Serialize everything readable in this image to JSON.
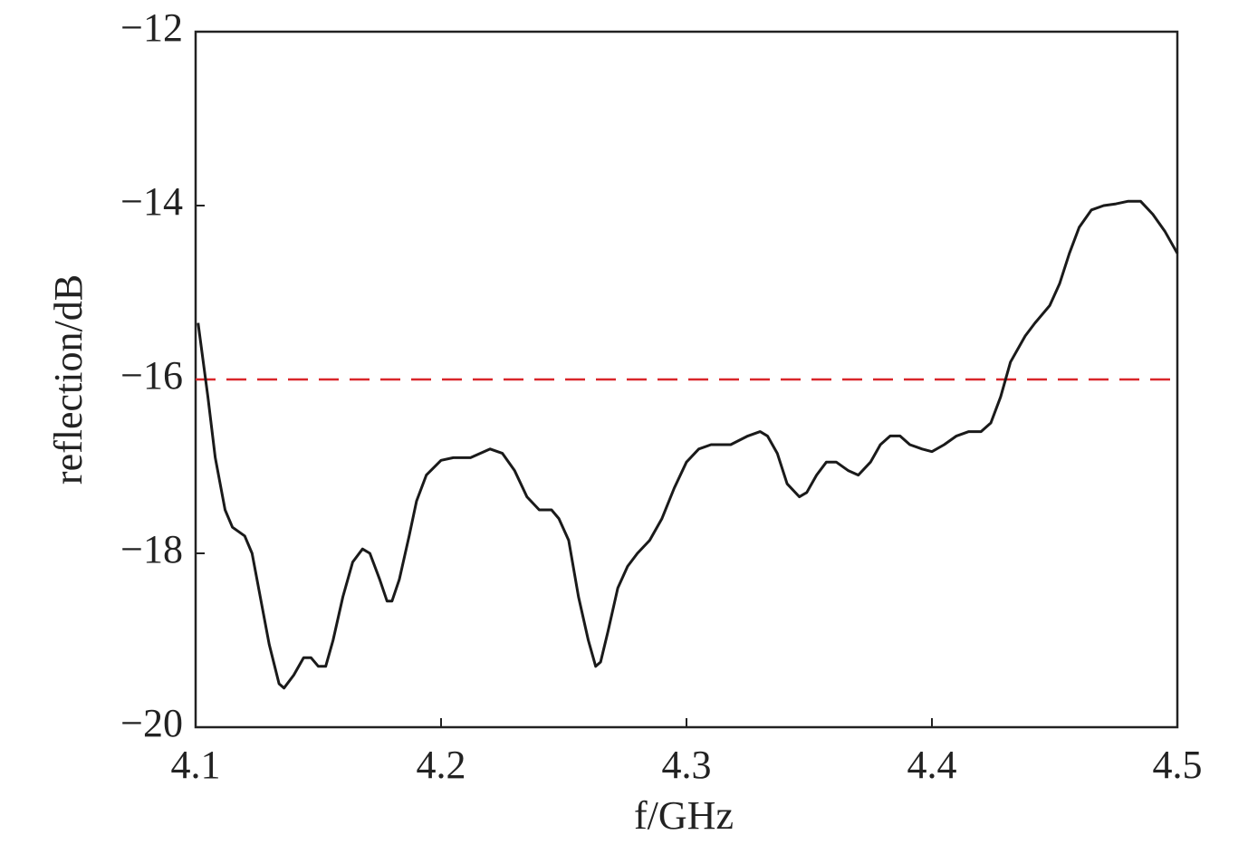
{
  "chart_data": {
    "type": "line",
    "x_label": "f/GHz",
    "y_label": "reflection/dB",
    "xlim": [
      4.1,
      4.5
    ],
    "xticks": [
      4.1,
      4.2,
      4.3,
      4.4,
      4.5
    ],
    "ylim": [
      -20,
      -12
    ],
    "yticks": [
      {
        "value": -12,
        "label": "−12"
      },
      {
        "value": -14,
        "label": "−14"
      },
      {
        "value": -16,
        "label": "−16"
      },
      {
        "value": -18,
        "label": "−18"
      },
      {
        "value": -20,
        "label": "−20"
      }
    ],
    "threshold": {
      "value": -16,
      "color": "#d9262a"
    },
    "series": [
      {
        "color": "#1a1a1a",
        "x": [
          4.101,
          4.105,
          4.108,
          4.112,
          4.115,
          4.12,
          4.123,
          4.127,
          4.13,
          4.134,
          4.136,
          4.14,
          4.144,
          4.147,
          4.15,
          4.153,
          4.156,
          4.16,
          4.164,
          4.168,
          4.171,
          4.175,
          4.178,
          4.18,
          4.183,
          4.187,
          4.19,
          4.194,
          4.2,
          4.205,
          4.212,
          4.22,
          4.225,
          4.23,
          4.235,
          4.24,
          4.245,
          4.248,
          4.252,
          4.256,
          4.26,
          4.263,
          4.265,
          4.268,
          4.272,
          4.276,
          4.28,
          4.285,
          4.29,
          4.295,
          4.3,
          4.305,
          4.31,
          4.318,
          4.325,
          4.33,
          4.333,
          4.337,
          4.341,
          4.346,
          4.349,
          4.353,
          4.357,
          4.361,
          4.366,
          4.37,
          4.375,
          4.379,
          4.383,
          4.387,
          4.391,
          4.396,
          4.4,
          4.405,
          4.41,
          4.415,
          4.42,
          4.424,
          4.428,
          4.432,
          4.438,
          4.442,
          4.448,
          4.452,
          4.456,
          4.46,
          4.465,
          4.47,
          4.475,
          4.48,
          4.485,
          4.49,
          4.495,
          4.5
        ],
        "values": [
          -15.35,
          -16.2,
          -16.9,
          -17.5,
          -17.7,
          -17.8,
          -18.0,
          -18.6,
          -19.05,
          -19.5,
          -19.55,
          -19.4,
          -19.2,
          -19.2,
          -19.3,
          -19.3,
          -19.0,
          -18.5,
          -18.1,
          -17.95,
          -18.0,
          -18.3,
          -18.55,
          -18.55,
          -18.3,
          -17.8,
          -17.4,
          -17.1,
          -16.93,
          -16.9,
          -16.9,
          -16.8,
          -16.85,
          -17.05,
          -17.35,
          -17.5,
          -17.5,
          -17.6,
          -17.85,
          -18.5,
          -19.0,
          -19.3,
          -19.25,
          -18.9,
          -18.4,
          -18.15,
          -18.0,
          -17.85,
          -17.6,
          -17.25,
          -16.95,
          -16.8,
          -16.75,
          -16.75,
          -16.65,
          -16.6,
          -16.65,
          -16.85,
          -17.2,
          -17.35,
          -17.3,
          -17.1,
          -16.95,
          -16.95,
          -17.05,
          -17.1,
          -16.95,
          -16.75,
          -16.65,
          -16.65,
          -16.75,
          -16.8,
          -16.83,
          -16.75,
          -16.65,
          -16.6,
          -16.6,
          -16.5,
          -16.2,
          -15.8,
          -15.5,
          -15.35,
          -15.15,
          -14.9,
          -14.55,
          -14.25,
          -14.05,
          -14.0,
          -13.98,
          -13.95,
          -13.95,
          -14.1,
          -14.3,
          -14.55
        ]
      }
    ]
  }
}
